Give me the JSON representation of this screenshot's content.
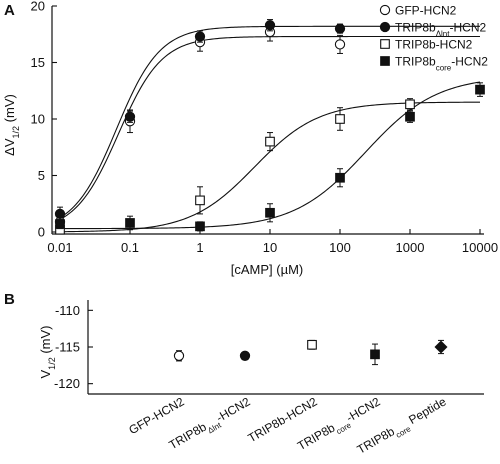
{
  "chart_data": [
    {
      "panel": "A",
      "type": "scatter",
      "xscale": "log",
      "xlabel": "[cAMP] (µM)",
      "ylabel": "ΔV1/2 (mV)",
      "ylabel_parts": {
        "main": "ΔV",
        "sub": "1/2",
        "unit": " (mV)"
      },
      "xlim": [
        0.01,
        10000
      ],
      "ylim": [
        0,
        20
      ],
      "xticks": [
        0.01,
        0.1,
        1,
        10,
        100,
        1000,
        10000
      ],
      "xtick_labels": [
        "0.01",
        "0.1",
        "1",
        "10",
        "100",
        "1000",
        "10000"
      ],
      "yticks": [
        0,
        5,
        10,
        15,
        20
      ],
      "ytick_labels": [
        "0",
        "5",
        "10",
        "15",
        "20"
      ],
      "legend_position": "bottom-right",
      "series": [
        {
          "name": "GFP-HCN2",
          "legend_parts": {
            "pre": "GFP-HCN2",
            "sub": "",
            "post": ""
          },
          "marker": "open-circle",
          "x": [
            0.01,
            0.1,
            1,
            10,
            100
          ],
          "y": [
            0.9,
            9.8,
            16.8,
            17.7,
            16.6
          ],
          "err": [
            0.7,
            1.0,
            0.8,
            0.8,
            0.8
          ],
          "fit": {
            "base": 0.0,
            "top": 17.3,
            "ec50": 0.068,
            "n": 1.4
          }
        },
        {
          "name": "TRIP8bΔlnt-HCN2",
          "legend_parts": {
            "pre": "TRIP8b",
            "sub": "Δlnt",
            "post": "-HCN2"
          },
          "marker": "filled-circle",
          "x": [
            0.01,
            0.1,
            1,
            10,
            100
          ],
          "y": [
            1.6,
            10.2,
            17.3,
            18.3,
            18.0
          ],
          "err": [
            0.6,
            0.5,
            0.5,
            0.5,
            0.4
          ],
          "fit": {
            "base": 0.0,
            "top": 18.2,
            "ec50": 0.064,
            "n": 1.4
          }
        },
        {
          "name": "TRIP8b-HCN2",
          "legend_parts": {
            "pre": "TRIP8b-HCN2",
            "sub": "",
            "post": ""
          },
          "marker": "open-square",
          "x": [
            0.01,
            1,
            10,
            100,
            1000
          ],
          "y": [
            0.2,
            2.8,
            8.0,
            10.0,
            11.3
          ],
          "err": [
            0.3,
            1.2,
            0.8,
            1.0,
            0.5
          ],
          "fit": {
            "base": 0.0,
            "top": 11.5,
            "ec50": 6.0,
            "n": 0.95
          }
        },
        {
          "name": "TRIP8bcore-HCN2",
          "legend_parts": {
            "pre": "TRIP8b",
            "sub": "core",
            "post": "-HCN2"
          },
          "marker": "filled-square",
          "x": [
            0.01,
            0.1,
            1,
            10,
            100,
            1000,
            10000
          ],
          "y": [
            0.7,
            0.8,
            0.5,
            1.7,
            4.8,
            10.2,
            12.6
          ],
          "err": [
            0.4,
            0.6,
            0.4,
            0.8,
            0.8,
            0.5,
            0.6
          ],
          "fit": {
            "base": 0.3,
            "top": 13.8,
            "ec50": 230,
            "n": 0.85
          }
        }
      ]
    },
    {
      "panel": "B",
      "type": "scatter",
      "ylabel": "V1/2 (mV)",
      "ylabel_parts": {
        "main": "V",
        "sub": "1/2",
        "unit": " (mV)"
      },
      "ylim": [
        -121,
        -109
      ],
      "yticks": [
        -110,
        -115,
        -120
      ],
      "ytick_labels": [
        "-110",
        "-115",
        "-120"
      ],
      "categories": [
        "GFP-HCN2",
        "TRIP8bΔlnt-HCN2",
        "TRIP8b-HCN2",
        "TRIP8bcore-HCN2",
        "TRIP8bcore Peptide"
      ],
      "category_parts": [
        {
          "pre": "GFP-HCN2",
          "sub": "",
          "post": ""
        },
        {
          "pre": "TRIP8b",
          "sub": "Δlnt",
          "post": "-HCN2"
        },
        {
          "pre": "TRIP8b-HCN2",
          "sub": "",
          "post": ""
        },
        {
          "pre": "TRIP8b",
          "sub": "core",
          "post": "-HCN2"
        },
        {
          "pre": "TRIP8b",
          "sub": "core",
          "post": " Peptide"
        }
      ],
      "markers": [
        "open-circle",
        "filled-circle",
        "open-square",
        "filled-square",
        "filled-diamond"
      ],
      "values": [
        -116.2,
        -116.2,
        -114.7,
        -116.0,
        -115.0
      ],
      "err": [
        0.7,
        0.3,
        0.6,
        1.4,
        0.9
      ]
    }
  ],
  "panel_labels": {
    "a": "A",
    "b": "B"
  }
}
